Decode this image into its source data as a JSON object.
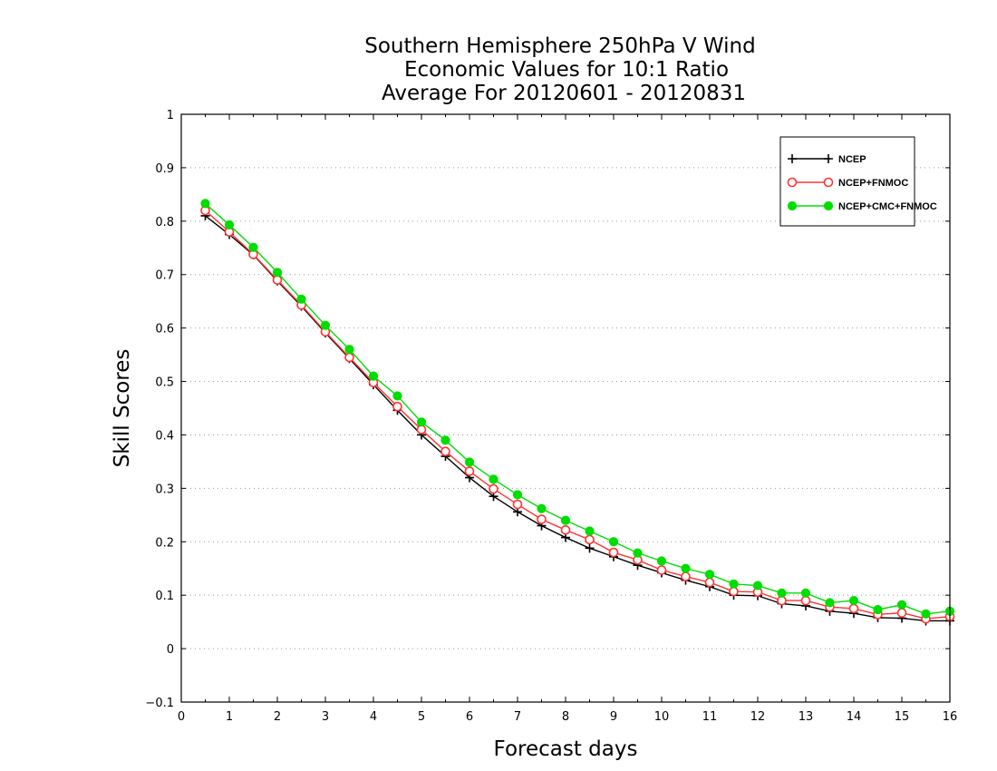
{
  "chart_data": {
    "type": "line",
    "title": [
      "Southern Hemisphere 250hPa V Wind",
      "Economic Values for 10:1 Ratio",
      "Average For 20120601 - 20120831"
    ],
    "xlabel": "Forecast days",
    "ylabel": "Skill Scores",
    "xlim": [
      0,
      16
    ],
    "ylim": [
      -0.1,
      1
    ],
    "xticks": [
      "0",
      "1",
      "2",
      "3",
      "4",
      "5",
      "6",
      "7",
      "8",
      "9",
      "10",
      "11",
      "12",
      "13",
      "14",
      "15",
      "16"
    ],
    "yticks": [
      "−0.1",
      "0",
      "0.1",
      "0.2",
      "0.3",
      "0.4",
      "0.5",
      "0.6",
      "0.7",
      "0.8",
      "0.9",
      "1"
    ],
    "grid": true,
    "legend_position": "top-right",
    "x": [
      0.5,
      1,
      1.5,
      2,
      2.5,
      3,
      3.5,
      4,
      4.5,
      5,
      5.5,
      6,
      6.5,
      7,
      7.5,
      8,
      8.5,
      9,
      9.5,
      10,
      10.5,
      11,
      11.5,
      12,
      12.5,
      13,
      13.5,
      14,
      14.5,
      15,
      15.5,
      16
    ],
    "series": [
      {
        "name": "NCEP",
        "color": "#000000",
        "marker": "plus",
        "values": [
          0.81,
          0.775,
          0.737,
          0.688,
          0.641,
          0.591,
          0.543,
          0.494,
          0.446,
          0.4,
          0.36,
          0.32,
          0.285,
          0.256,
          0.23,
          0.208,
          0.188,
          0.172,
          0.156,
          0.142,
          0.128,
          0.116,
          0.1,
          0.099,
          0.084,
          0.08,
          0.07,
          0.066,
          0.058,
          0.057,
          0.052,
          0.052
        ]
      },
      {
        "name": "NCEP+FNMOC",
        "color": "#ff3333",
        "marker": "open-circle",
        "values": [
          0.82,
          0.78,
          0.738,
          0.69,
          0.643,
          0.593,
          0.545,
          0.498,
          0.453,
          0.41,
          0.369,
          0.332,
          0.299,
          0.27,
          0.242,
          0.222,
          0.204,
          0.18,
          0.166,
          0.147,
          0.135,
          0.124,
          0.107,
          0.106,
          0.09,
          0.09,
          0.078,
          0.075,
          0.064,
          0.067,
          0.056,
          0.06
        ]
      },
      {
        "name": "NCEP+CMC+FNMOC",
        "color": "#00dd00",
        "marker": "filled-circle",
        "values": [
          0.833,
          0.793,
          0.751,
          0.704,
          0.654,
          0.605,
          0.56,
          0.51,
          0.473,
          0.424,
          0.39,
          0.349,
          0.317,
          0.288,
          0.262,
          0.24,
          0.22,
          0.2,
          0.179,
          0.164,
          0.15,
          0.139,
          0.121,
          0.118,
          0.104,
          0.104,
          0.086,
          0.09,
          0.073,
          0.082,
          0.065,
          0.07
        ]
      }
    ]
  }
}
